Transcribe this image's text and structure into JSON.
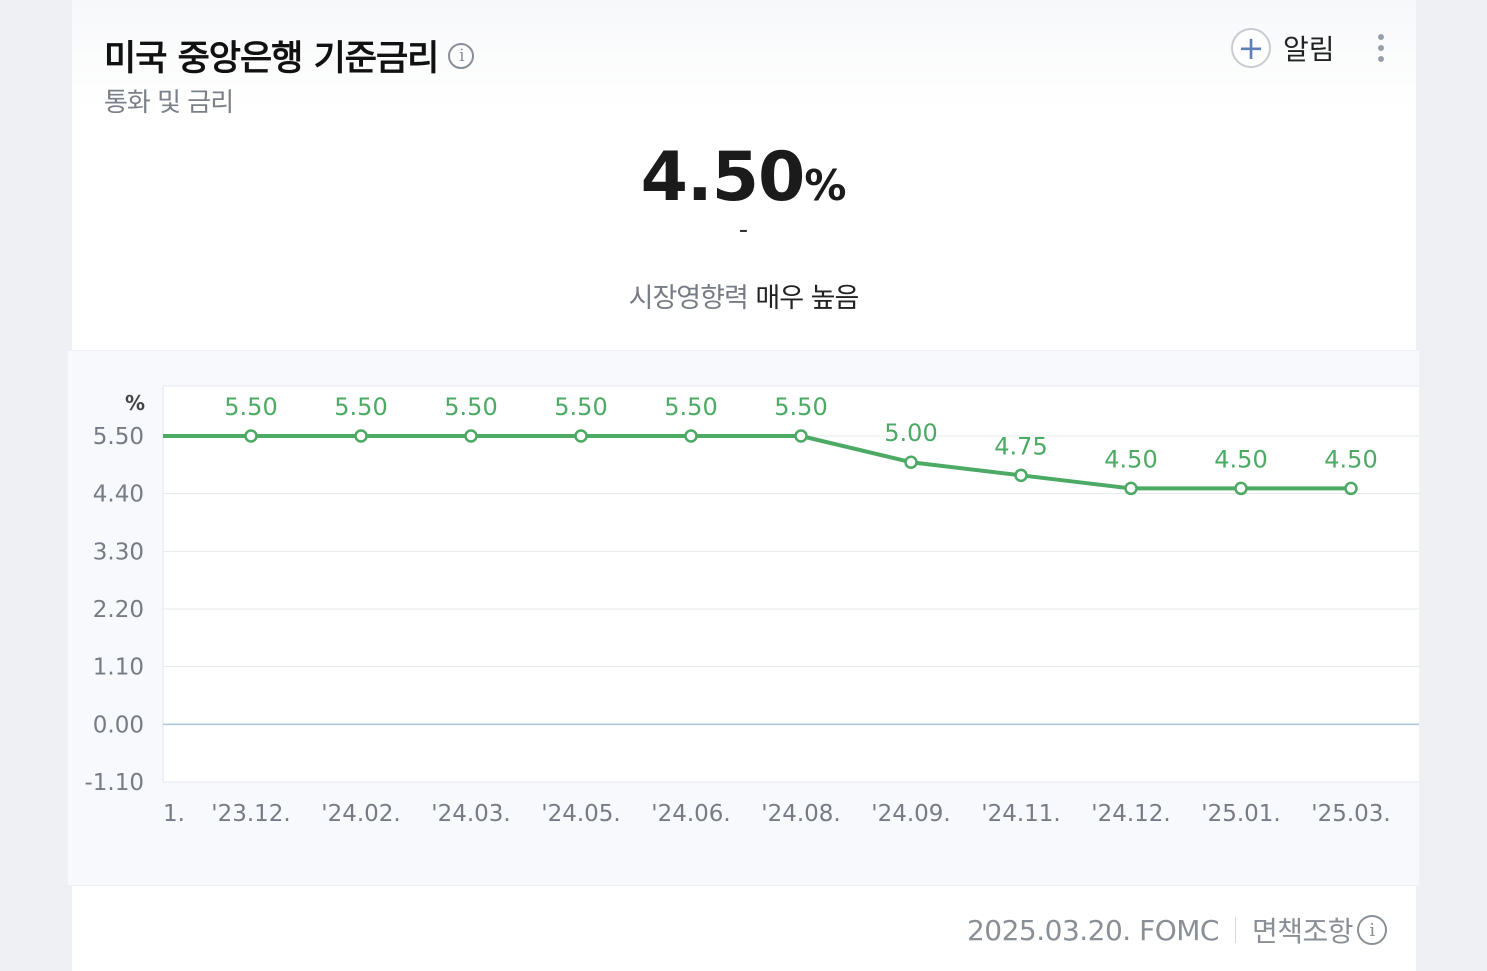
{
  "header": {
    "title": "미국 중앙은행 기준금리",
    "info_icon": "i",
    "subtitle": "통화 및 금리",
    "alarm_label": "알림",
    "plus_icon": "+"
  },
  "summary": {
    "value": "4.50",
    "unit": "%",
    "change": "-",
    "impact_label": "시장영향력",
    "impact_value": "매우 높음"
  },
  "chart_data": {
    "type": "line",
    "ylabel": "%",
    "ylim": [
      -1.1,
      6.6
    ],
    "yticks": [
      "5.50",
      "4.40",
      "3.30",
      "2.20",
      "1.10",
      "0.00",
      "-1.10"
    ],
    "categories": [
      "'23.12.",
      "'24.02.",
      "'24.03.",
      "'24.05.",
      "'24.06.",
      "'24.08.",
      "'24.09.",
      "'24.11.",
      "'24.12.",
      "'25.01.",
      "'25.03."
    ],
    "clipped_category_label": "1.",
    "values": [
      5.5,
      5.5,
      5.5,
      5.5,
      5.5,
      5.5,
      5.0,
      4.75,
      4.5,
      4.5,
      4.5
    ],
    "data_labels": [
      "5.50",
      "5.50",
      "5.50",
      "5.50",
      "5.50",
      "5.50",
      "5.00",
      "4.75",
      "4.50",
      "4.50",
      "4.50"
    ],
    "leading_value": 5.5,
    "line_color": "#4caa64",
    "zero_line_color": "#a9c7de",
    "grid": true
  },
  "footer": {
    "date": "2025.03.20. FOMC",
    "disclaimer": "면책조항",
    "info_icon": "i"
  }
}
